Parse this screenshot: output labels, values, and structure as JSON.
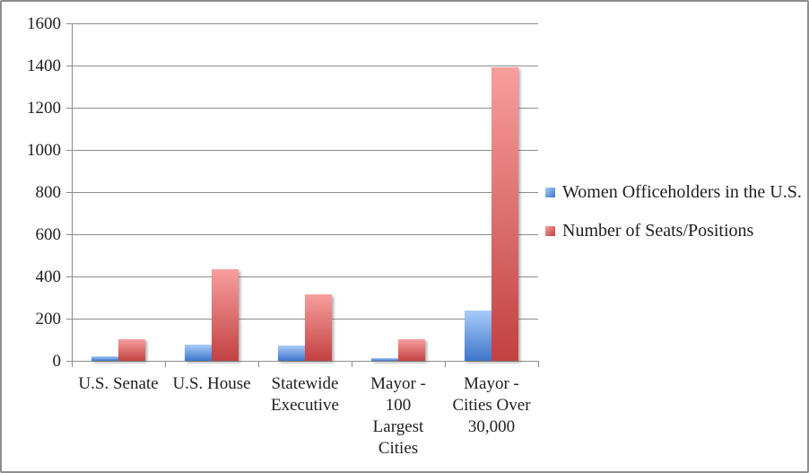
{
  "chart_data": {
    "type": "bar",
    "title": "",
    "xlabel": "",
    "ylabel": "",
    "categories": [
      "U.S. Senate",
      "U.S. House",
      "Statewide Executive",
      "Mayor - 100 Largest Cities",
      "Mayor - Cities Over 30,000"
    ],
    "category_label_lines": [
      [
        "U.S. Senate"
      ],
      [
        "U.S. House"
      ],
      [
        "Statewide",
        "Executive"
      ],
      [
        "Mayor -",
        "100",
        "Largest",
        "Cities"
      ],
      [
        "Mayor -",
        "Cities Over",
        "30,000"
      ]
    ],
    "series": [
      {
        "name": "Women Officeholders in the U.S.",
        "values": [
          20,
          78,
          74,
          13,
          240
        ],
        "color_top": "#a9cbf9",
        "color_bottom": "#3d76c9"
      },
      {
        "name": "Number of Seats/Positions",
        "values": [
          100,
          435,
          315,
          100,
          1390
        ],
        "color_top": "#f89e9e",
        "color_bottom": "#c24141"
      }
    ],
    "ylim": [
      0,
      1600
    ],
    "yticks": [
      0,
      200,
      400,
      600,
      800,
      1000,
      1200,
      1400,
      1600
    ],
    "grid": true,
    "legend_position": "right"
  },
  "colors": {
    "axis": "#8c8c8c",
    "text": "#1f1f1f",
    "border": "#8e8e8e",
    "background": "#ffffff"
  }
}
